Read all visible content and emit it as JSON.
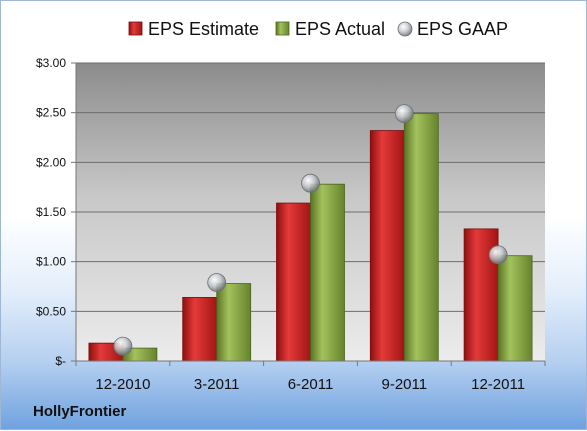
{
  "company": "HollyFrontier",
  "chart_data": {
    "type": "bar",
    "categories": [
      "12-2010",
      "3-2011",
      "6-2011",
      "9-2011",
      "12-2011"
    ],
    "series": [
      {
        "name": "EPS Estimate",
        "color": "#cc1f1f",
        "values": [
          0.18,
          0.64,
          1.59,
          2.32,
          1.33
        ]
      },
      {
        "name": "EPS Actual",
        "color": "#7f9e3c",
        "values": [
          0.13,
          0.78,
          1.78,
          2.49,
          1.06
        ]
      },
      {
        "name": "EPS GAAP",
        "color": "#bfc3c8",
        "marker": "circle",
        "values": [
          0.15,
          0.79,
          1.79,
          2.49,
          1.07
        ]
      }
    ],
    "ylim": [
      0,
      3.0
    ],
    "yticks": [
      "$-",
      "$0.50",
      "$1.00",
      "$1.50",
      "$2.00",
      "$2.50",
      "$3.00"
    ],
    "grid": true,
    "legend_position": "top"
  }
}
